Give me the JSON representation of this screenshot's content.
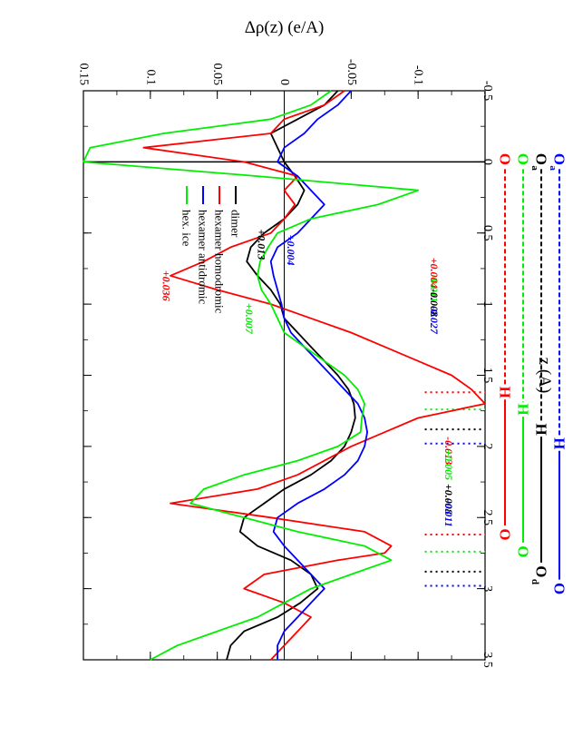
{
  "chart_data": {
    "type": "line",
    "title": "",
    "xlabel": "z (A)",
    "ylabel": "Δρ(z) (e/A)",
    "xlim": [
      -0.5,
      3.5
    ],
    "ylim": [
      -0.15,
      0.15
    ],
    "xticks": [
      "-0.5",
      "0",
      "0.5",
      "1",
      "1.5",
      "2",
      "2.5",
      "3",
      "3.5"
    ],
    "yticks": [
      "-0.1",
      "-0.05",
      "0",
      "0.05",
      "0.1",
      "0.15"
    ],
    "xtick_values": [
      -0.5,
      0,
      0.5,
      1,
      1.5,
      2,
      2.5,
      3,
      3.5
    ],
    "ytick_values": [
      -0.1,
      -0.05,
      0,
      0.05,
      0.1,
      0.15
    ],
    "zero_lines": {
      "x": 0,
      "y": 0
    },
    "legend": {
      "placement": "top-right",
      "entries": [
        "dimer",
        "hexamer homodromic",
        "hexamer antidromic",
        "hex. ice"
      ]
    },
    "series": [
      {
        "name": "dimer",
        "color": "#000000",
        "x": [
          -0.5,
          -0.4,
          -0.3,
          -0.2,
          -0.1,
          0,
          0.1,
          0.2,
          0.3,
          0.4,
          0.5,
          0.6,
          0.7,
          0.8,
          0.9,
          1.0,
          1.1,
          1.2,
          1.3,
          1.4,
          1.5,
          1.6,
          1.7,
          1.8,
          1.9,
          2.0,
          2.1,
          2.2,
          2.3,
          2.4,
          2.5,
          2.6,
          2.7,
          2.8,
          2.9,
          3.0,
          3.1,
          3.2,
          3.3,
          3.4,
          3.5
        ],
        "y": [
          -0.04,
          -0.03,
          -0.01,
          0.01,
          0.005,
          0.0,
          -0.008,
          -0.015,
          -0.01,
          0.0,
          0.015,
          0.025,
          0.028,
          0.02,
          0.01,
          0.003,
          0.0,
          -0.01,
          -0.02,
          -0.03,
          -0.04,
          -0.048,
          -0.052,
          -0.053,
          -0.05,
          -0.045,
          -0.035,
          -0.02,
          0.0,
          0.015,
          0.03,
          0.033,
          0.02,
          -0.005,
          -0.02,
          -0.025,
          -0.012,
          0.005,
          0.03,
          0.04,
          0.043
        ]
      },
      {
        "name": "hexamer homodromic",
        "color": "#ff0000",
        "x": [
          -0.5,
          -0.4,
          -0.3,
          -0.2,
          -0.1,
          0,
          0.1,
          0.2,
          0.3,
          0.4,
          0.5,
          0.6,
          0.7,
          0.8,
          0.9,
          1.0,
          1.1,
          1.2,
          1.3,
          1.4,
          1.5,
          1.6,
          1.7,
          1.75,
          1.8,
          1.9,
          2.0,
          2.1,
          2.2,
          2.3,
          2.4,
          2.5,
          2.6,
          2.7,
          2.75,
          2.8,
          2.9,
          3.0,
          3.1,
          3.2,
          3.3,
          3.4,
          3.5
        ],
        "y": [
          -0.045,
          -0.03,
          0.0,
          0.01,
          0.105,
          0.03,
          -0.01,
          0.0,
          -0.008,
          0.0,
          0.01,
          0.04,
          0.06,
          0.085,
          0.05,
          0.01,
          -0.02,
          -0.05,
          -0.075,
          -0.1,
          -0.125,
          -0.14,
          -0.15,
          -0.125,
          -0.1,
          -0.075,
          -0.05,
          -0.03,
          -0.01,
          0.02,
          0.085,
          0.01,
          -0.06,
          -0.08,
          -0.075,
          -0.04,
          0.015,
          0.03,
          0.0,
          -0.02,
          -0.01,
          0.0,
          0.01
        ]
      },
      {
        "name": "hexamer antidromic",
        "color": "#0000ff",
        "x": [
          -0.5,
          -0.4,
          -0.3,
          -0.2,
          -0.1,
          0,
          0.1,
          0.2,
          0.3,
          0.4,
          0.5,
          0.6,
          0.7,
          0.8,
          0.9,
          1.0,
          1.1,
          1.2,
          1.3,
          1.4,
          1.5,
          1.6,
          1.7,
          1.8,
          1.9,
          2.0,
          2.1,
          2.2,
          2.3,
          2.4,
          2.5,
          2.6,
          2.7,
          2.8,
          2.9,
          3.0,
          3.1,
          3.2,
          3.3,
          3.4,
          3.5
        ],
        "y": [
          -0.05,
          -0.04,
          -0.025,
          -0.015,
          0.0,
          0.005,
          -0.01,
          -0.02,
          -0.03,
          -0.02,
          -0.01,
          0.005,
          0.01,
          0.008,
          0.005,
          0.002,
          0.0,
          -0.005,
          -0.015,
          -0.025,
          -0.035,
          -0.045,
          -0.055,
          -0.06,
          -0.062,
          -0.06,
          -0.055,
          -0.045,
          -0.03,
          -0.01,
          0.005,
          0.008,
          0.0,
          -0.01,
          -0.02,
          -0.03,
          -0.02,
          -0.01,
          0.0,
          0.005,
          0.005
        ]
      },
      {
        "name": "hex. ice",
        "color": "#00ee00",
        "x": [
          -0.5,
          -0.4,
          -0.3,
          -0.2,
          -0.1,
          0,
          0.1,
          0.2,
          0.3,
          0.4,
          0.5,
          0.6,
          0.7,
          0.8,
          0.9,
          1.0,
          1.1,
          1.2,
          1.3,
          1.4,
          1.5,
          1.6,
          1.7,
          1.8,
          1.9,
          2.0,
          2.1,
          2.2,
          2.3,
          2.4,
          2.5,
          2.6,
          2.7,
          2.8,
          2.9,
          3.0,
          3.1,
          3.2,
          3.3,
          3.4,
          3.5
        ],
        "y": [
          -0.035,
          -0.02,
          0.01,
          0.09,
          0.145,
          0.15,
          0.02,
          -0.1,
          -0.07,
          -0.02,
          0.005,
          0.012,
          0.018,
          0.02,
          0.017,
          0.01,
          0.005,
          0.0,
          -0.015,
          -0.03,
          -0.045,
          -0.055,
          -0.06,
          -0.058,
          -0.057,
          -0.04,
          -0.01,
          0.03,
          0.06,
          0.07,
          0.03,
          -0.01,
          -0.06,
          -0.08,
          -0.05,
          -0.02,
          0.0,
          0.02,
          0.05,
          0.08,
          0.1
        ]
      }
    ],
    "vertical_dotted_lines": [
      {
        "x": 1.62,
        "color": "#ff0000"
      },
      {
        "x": 1.74,
        "color": "#00ee00"
      },
      {
        "x": 1.88,
        "color": "#000000"
      },
      {
        "x": 1.98,
        "color": "#0000ff"
      },
      {
        "x": 2.62,
        "color": "#ff0000"
      },
      {
        "x": 2.74,
        "color": "#00ee00"
      },
      {
        "x": 2.88,
        "color": "#000000"
      },
      {
        "x": 2.98,
        "color": "#0000ff"
      }
    ],
    "annotations": [
      {
        "text": "+0.013",
        "x": 0.58,
        "y": 0.017,
        "color": "#000000"
      },
      {
        "text": "+0.004",
        "x": 0.62,
        "y": -0.005,
        "color": "#0000ff"
      },
      {
        "text": "+0.036",
        "x": 0.87,
        "y": 0.088,
        "color": "#ff0000"
      },
      {
        "text": "+0.007",
        "x": 1.1,
        "y": 0.026,
        "color": "#00ee00"
      },
      {
        "text": "+0.004",
        "x": 0.78,
        "y": -0.112,
        "color": "#ff0000"
      },
      {
        "text": "-0.011",
        "x": 0.89,
        "y": -0.112,
        "color": "#00ee00"
      },
      {
        "text": "-0.008",
        "x": 0.99,
        "y": -0.112,
        "color": "#000000"
      },
      {
        "text": "-0.027",
        "x": 1.11,
        "y": -0.112,
        "color": "#0000ff"
      },
      {
        "text": "-0.013",
        "x": 2.03,
        "y": -0.123,
        "color": "#ff0000"
      },
      {
        "text": "+0.005",
        "x": 2.13,
        "y": -0.123,
        "color": "#00ee00"
      },
      {
        "text": "+0.008",
        "x": 2.37,
        "y": -0.123,
        "color": "#000000"
      },
      {
        "text": "-0.011",
        "x": 2.47,
        "y": -0.123,
        "color": "#0000ff"
      }
    ],
    "molecular_chains": [
      {
        "color": "#0000ff",
        "start_label": "O",
        "start_sub": "a",
        "h_x": 1.98,
        "end_label": "O",
        "end_sub": ""
      },
      {
        "color": "#000000",
        "start_label": "O",
        "start_sub": "a",
        "h_x": 1.88,
        "end_label": "O",
        "end_sub": "d"
      },
      {
        "color": "#00ee00",
        "start_label": "O",
        "start_sub": "",
        "h_x": 1.74,
        "end_label": "O",
        "end_sub": ""
      },
      {
        "color": "#ff0000",
        "start_label": "O",
        "start_sub": "",
        "h_x": 1.62,
        "end_label": "O",
        "end_sub": ""
      }
    ],
    "chain_h_label": "H"
  }
}
